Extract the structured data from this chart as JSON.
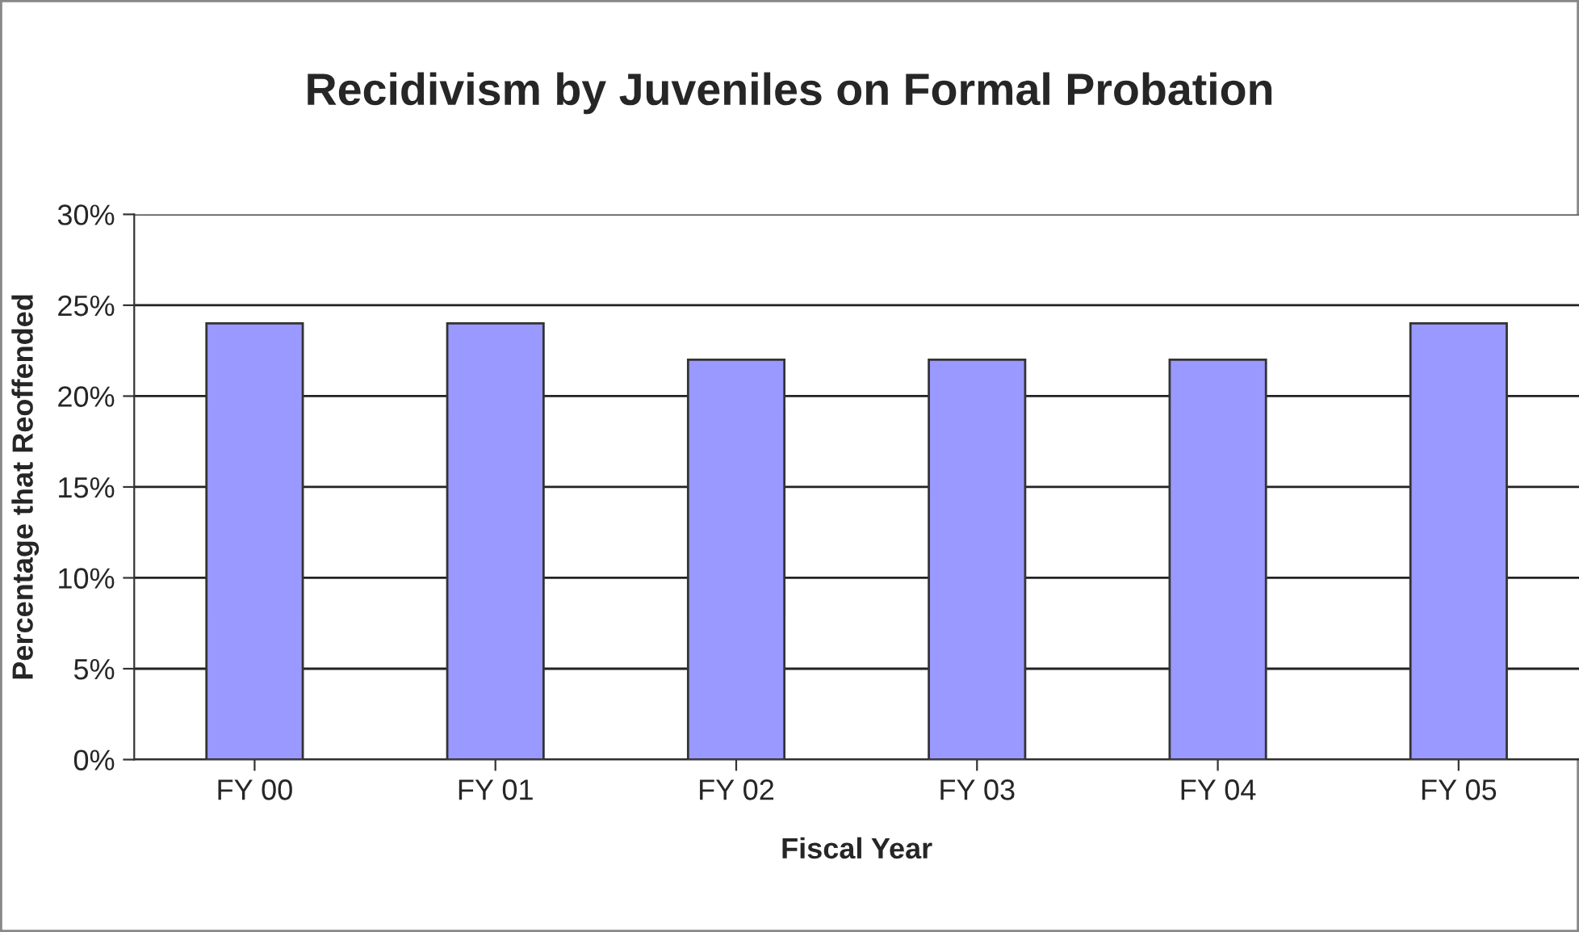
{
  "chart_data": {
    "type": "bar",
    "title": "Recidivism by Juveniles on Formal Probation",
    "xlabel": "Fiscal Year",
    "ylabel": "Percentage that Reoffended",
    "categories": [
      "FY 00",
      "FY 01",
      "FY 02",
      "FY 03",
      "FY 04",
      "FY 05"
    ],
    "values": [
      24,
      24,
      22,
      22,
      22,
      24
    ],
    "color": "#9999ff",
    "ylim": [
      0,
      30
    ],
    "yticks": [
      {
        "value": 0,
        "label": "0%"
      },
      {
        "value": 5,
        "label": "5%"
      },
      {
        "value": 10,
        "label": "10%"
      },
      {
        "value": 15,
        "label": "15%"
      },
      {
        "value": 20,
        "label": "20%"
      },
      {
        "value": 25,
        "label": "25%"
      },
      {
        "value": 30,
        "label": "30%"
      }
    ],
    "grid": "y",
    "legend": false
  }
}
